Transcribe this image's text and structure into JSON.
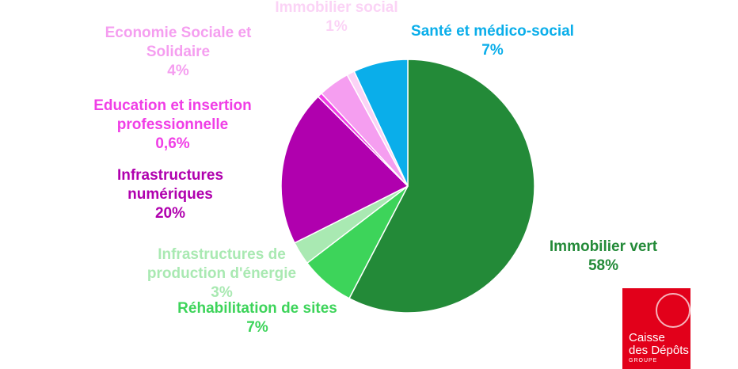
{
  "chart_data": {
    "type": "pie",
    "categories": [
      "Immobilier vert",
      "Réhabilitation de sites",
      "Infrastructures de production d'énergie",
      "Infrastructures numériques",
      "Education et insertion professionnelle",
      "Economie Sociale et Solidaire",
      "Immobilier social",
      "Santé et médico-social"
    ],
    "values": [
      58,
      7,
      3,
      20,
      0.6,
      4,
      1,
      7
    ],
    "value_labels": [
      "58%",
      "7%",
      "3%",
      "20%",
      "0,6%",
      "4%",
      "1%",
      "7%"
    ],
    "colors": [
      "#238a38",
      "#3dd45a",
      "#a9e9b2",
      "#b000ae",
      "#f03ee6",
      "#f59ef0",
      "#fbd3f6",
      "#0aaeea"
    ]
  },
  "logo": {
    "lines": [
      "Caisse",
      "des Dépôts",
      "GROUPE"
    ]
  }
}
